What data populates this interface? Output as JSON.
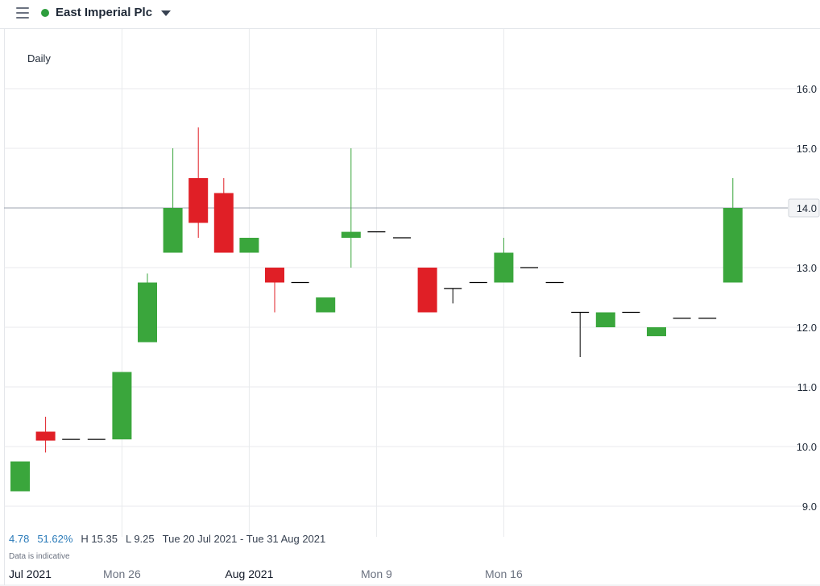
{
  "header": {
    "instrument": "East Imperial Plc",
    "status_color": "#2e9e3e"
  },
  "interval": "Daily",
  "summary": {
    "change": "4.78",
    "change_pct": "51.62%",
    "high": "H 15.35",
    "low": "L 9.25",
    "range": "Tue 20 Jul 2021 - Tue 31 Aug 2021"
  },
  "disclaimer": "Data is indicative",
  "chart_data": {
    "type": "candlestick",
    "y_ticks": [
      "9.0",
      "10.0",
      "11.0",
      "12.0",
      "13.0",
      "14.0",
      "15.0",
      "16.0"
    ],
    "ylim": [
      8.5,
      16.9
    ],
    "current_price": "14.0",
    "x_labels": [
      {
        "label": "Jul 2021",
        "index": 0,
        "bold": true
      },
      {
        "label": "Mon 26",
        "index": 4,
        "bold": false
      },
      {
        "label": "Aug 2021",
        "index": 9,
        "bold": true
      },
      {
        "label": "Mon 9",
        "index": 14,
        "bold": false
      },
      {
        "label": "Mon 16",
        "index": 19,
        "bold": false
      }
    ],
    "colors": {
      "up": "#3aa63c",
      "down": "#e01f26",
      "flat": "#000000"
    },
    "candles": [
      {
        "o": 9.25,
        "h": 9.75,
        "l": 9.25,
        "c": 9.75
      },
      {
        "o": 10.25,
        "h": 10.5,
        "l": 9.9,
        "c": 10.1
      },
      {
        "o": 10.12,
        "h": 10.12,
        "l": 10.12,
        "c": 10.12
      },
      {
        "o": 10.12,
        "h": 10.12,
        "l": 10.12,
        "c": 10.12
      },
      {
        "o": 10.12,
        "h": 11.25,
        "l": 10.12,
        "c": 11.25
      },
      {
        "o": 11.75,
        "h": 12.9,
        "l": 11.75,
        "c": 12.75
      },
      {
        "o": 13.25,
        "h": 15.0,
        "l": 13.25,
        "c": 14.0
      },
      {
        "o": 14.5,
        "h": 15.35,
        "l": 13.5,
        "c": 13.75
      },
      {
        "o": 14.25,
        "h": 14.5,
        "l": 13.25,
        "c": 13.25
      },
      {
        "o": 13.25,
        "h": 13.5,
        "l": 13.25,
        "c": 13.5
      },
      {
        "o": 13.0,
        "h": 13.0,
        "l": 12.25,
        "c": 12.75
      },
      {
        "o": 12.75,
        "h": 12.75,
        "l": 12.75,
        "c": 12.75
      },
      {
        "o": 12.25,
        "h": 12.5,
        "l": 12.25,
        "c": 12.5
      },
      {
        "o": 13.5,
        "h": 15.0,
        "l": 13.0,
        "c": 13.6
      },
      {
        "o": 13.6,
        "h": 13.6,
        "l": 13.6,
        "c": 13.6
      },
      {
        "o": 13.5,
        "h": 13.5,
        "l": 13.5,
        "c": 13.5
      },
      {
        "o": 13.0,
        "h": 13.0,
        "l": 12.25,
        "c": 12.25
      },
      {
        "o": 12.65,
        "h": 12.65,
        "l": 12.4,
        "c": 12.65
      },
      {
        "o": 12.75,
        "h": 12.75,
        "l": 12.75,
        "c": 12.75
      },
      {
        "o": 12.75,
        "h": 13.5,
        "l": 12.75,
        "c": 13.25
      },
      {
        "o": 13.0,
        "h": 13.0,
        "l": 13.0,
        "c": 13.0
      },
      {
        "o": 12.75,
        "h": 12.75,
        "l": 12.75,
        "c": 12.75
      },
      {
        "o": 12.25,
        "h": 12.25,
        "l": 11.5,
        "c": 12.25
      },
      {
        "o": 12.0,
        "h": 12.25,
        "l": 12.0,
        "c": 12.25
      },
      {
        "o": 12.25,
        "h": 12.25,
        "l": 12.25,
        "c": 12.25
      },
      {
        "o": 11.85,
        "h": 12.0,
        "l": 11.85,
        "c": 12.0
      },
      {
        "o": 12.15,
        "h": 12.15,
        "l": 12.15,
        "c": 12.15
      },
      {
        "o": 12.15,
        "h": 12.15,
        "l": 12.15,
        "c": 12.15
      },
      {
        "o": 12.75,
        "h": 14.5,
        "l": 12.75,
        "c": 14.0
      }
    ]
  }
}
